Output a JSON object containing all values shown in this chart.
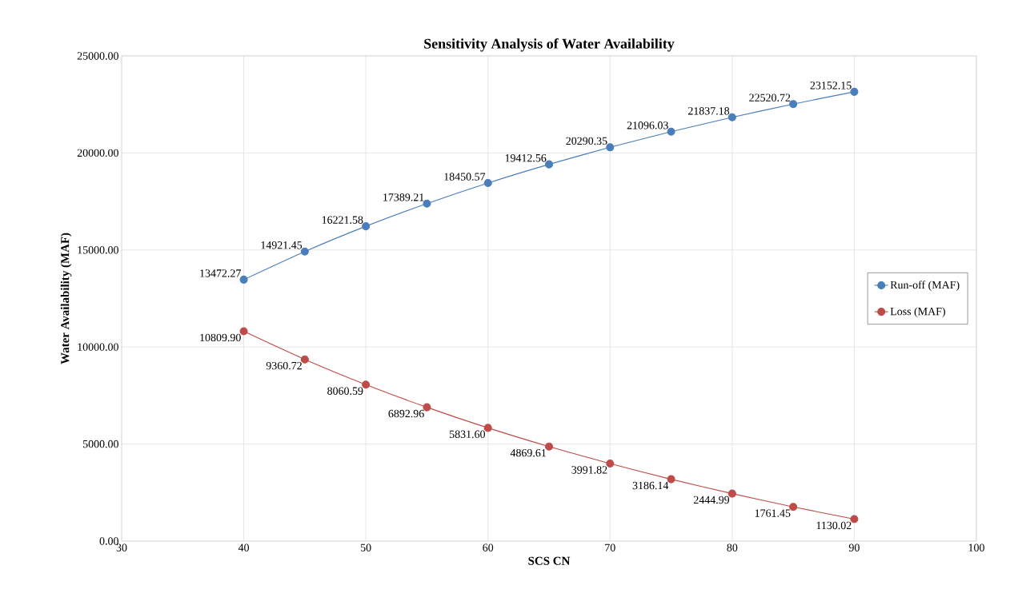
{
  "chart_data": {
    "type": "line",
    "title": "Sensitivity Analysis of Water Availability",
    "xlabel": "SCS CN",
    "ylabel": "Water Availability (MAF)",
    "x": [
      40,
      45,
      50,
      55,
      60,
      65,
      70,
      75,
      80,
      85,
      90
    ],
    "series": [
      {
        "name": "Run-off (MAF)",
        "color": "#4a7ebb",
        "values": [
          13472.27,
          14921.45,
          16221.58,
          17389.21,
          18450.57,
          19412.56,
          20290.35,
          21096.03,
          21837.18,
          22520.72,
          23152.15
        ],
        "value_labels": [
          "13472.27",
          "14921.45",
          "16221.58",
          "17389.21",
          "18450.57",
          "19412.56",
          "20290.35",
          "21096.03",
          "21837.18",
          "22520.72",
          "23152.15"
        ]
      },
      {
        "name": "Loss (MAF)",
        "color": "#be4b48",
        "values": [
          10809.9,
          9360.72,
          8060.59,
          6892.96,
          5831.6,
          4869.61,
          3991.82,
          3186.14,
          2444.99,
          1761.45,
          1130.02
        ],
        "value_labels": [
          "10809.90",
          "9360.72",
          "8060.59",
          "6892.96",
          "5831.60",
          "4869.61",
          "3991.82",
          "3186.14",
          "2444.99",
          "1761.45",
          "1130.02"
        ]
      }
    ],
    "xlim": [
      30,
      100
    ],
    "xticks": [
      30,
      40,
      50,
      60,
      70,
      80,
      90,
      100
    ],
    "ylim": [
      0,
      25000
    ],
    "yticks": [
      {
        "value": 0,
        "label": "0.00"
      },
      {
        "value": 5000,
        "label": "5000.00"
      },
      {
        "value": 10000,
        "label": "10000.00"
      },
      {
        "value": 15000,
        "label": "15000.00"
      },
      {
        "value": 20000,
        "label": "20000.00"
      },
      {
        "value": 25000,
        "label": "25000.00"
      }
    ],
    "grid": true,
    "legend": "right",
    "marker": "circle",
    "line_style": "solid"
  }
}
